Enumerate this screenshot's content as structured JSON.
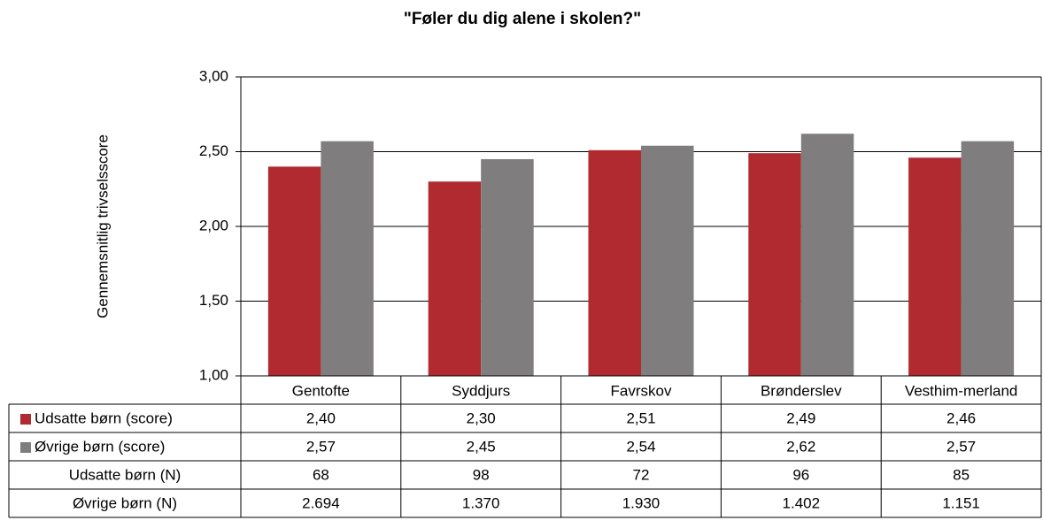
{
  "chart_data": {
    "type": "bar",
    "title": "\"Føler du dig alene i skolen?\"",
    "y_label": "Gennemsnitlig trivselsscore",
    "categories": [
      "Gentofte",
      "Syddjurs",
      "Favrskov",
      "Brønderslev",
      "Vesthim-merland"
    ],
    "series": [
      {
        "name": "Udsatte børn (score)",
        "color": "#b02a30",
        "values": [
          2.4,
          2.3,
          2.51,
          2.49,
          2.46
        ],
        "value_labels": [
          "2,40",
          "2,30",
          "2,51",
          "2,49",
          "2,46"
        ]
      },
      {
        "name": "Øvrige børn (score)",
        "color": "#7f7d7e",
        "values": [
          2.57,
          2.45,
          2.54,
          2.62,
          2.57
        ],
        "value_labels": [
          "2,57",
          "2,45",
          "2,54",
          "2,62",
          "2,57"
        ]
      }
    ],
    "table_rows": [
      {
        "name": "Udsatte børn (N)",
        "values": [
          68,
          98,
          72,
          96,
          85
        ]
      },
      {
        "name": "Øvrige børn (N)",
        "values": [
          2694,
          1370,
          1930,
          1402,
          1151
        ],
        "value_labels": [
          "2.694",
          "1.370",
          "1.930",
          "1.402",
          "1.151"
        ]
      }
    ],
    "ylim": [
      1,
      3
    ],
    "yticks": [
      {
        "value": 1,
        "label": "1,00"
      },
      {
        "value": 1.5,
        "label": "1,50"
      },
      {
        "value": 2,
        "label": "2,00"
      },
      {
        "value": 2.5,
        "label": "2,50"
      },
      {
        "value": 3,
        "label": "3,00"
      }
    ],
    "grid": true
  }
}
